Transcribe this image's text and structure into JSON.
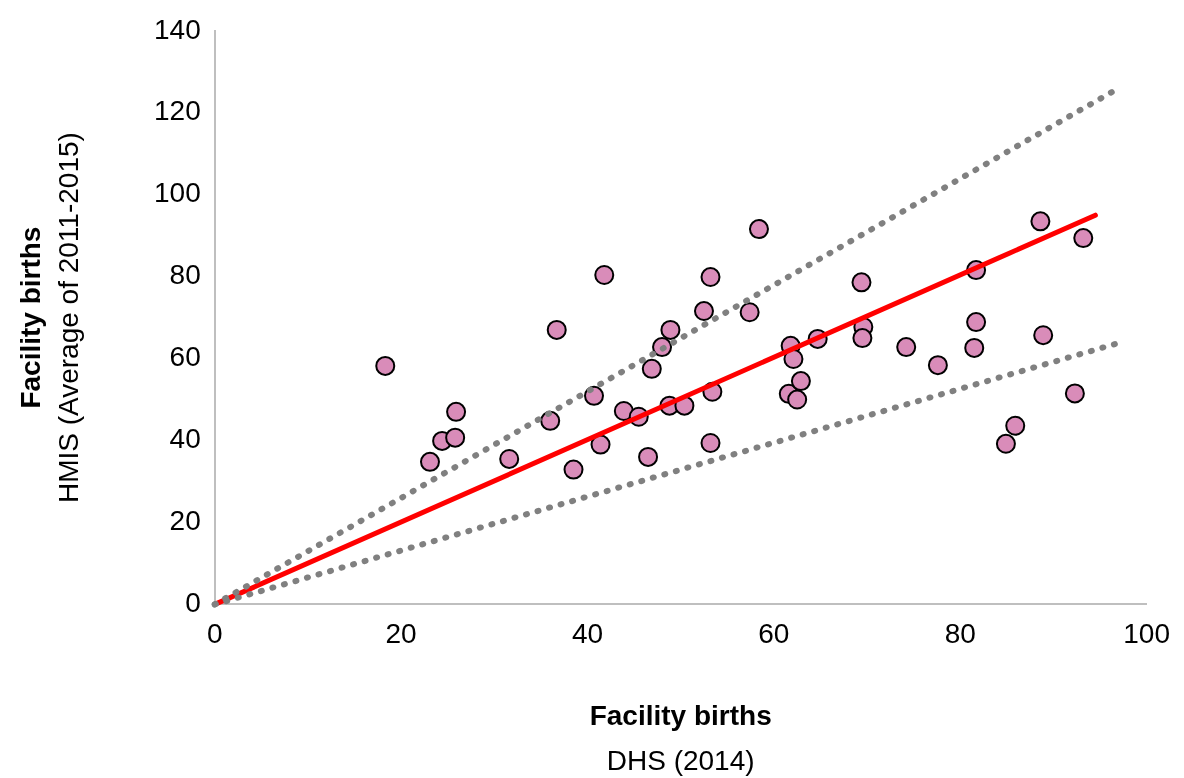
{
  "chart_data": {
    "type": "scatter",
    "xlabel": "Facility births\nDHS (2014)",
    "ylabel": "Facility births\nHMIS (Average of 2011-2015)",
    "xlim": [
      0,
      100
    ],
    "ylim": [
      0,
      140
    ],
    "xticks": [
      0,
      20,
      40,
      60,
      80,
      100
    ],
    "yticks": [
      0,
      20,
      40,
      60,
      80,
      100,
      120,
      140
    ],
    "grid": false,
    "legend": false,
    "series": [
      {
        "type": "scatter",
        "color": "#d98cb9",
        "marker": "circle",
        "x": [
          18.3,
          23.1,
          24.4,
          25.9,
          25.8,
          31.6,
          36.0,
          36.7,
          38.5,
          40.7,
          41.4,
          41.8,
          43.9,
          45.5,
          46.5,
          46.9,
          48.0,
          48.9,
          48.8,
          50.4,
          52.5,
          53.2,
          53.2,
          53.4,
          57.4,
          58.4,
          61.8,
          62.1,
          61.6,
          62.5,
          62.9,
          64.7,
          69.4,
          69.6,
          69.5,
          74.2,
          77.6,
          81.7,
          81.7,
          81.5,
          84.9,
          85.9,
          92.3,
          88.9,
          88.6,
          93.2
        ],
        "values": [
          58.2,
          34.8,
          39.9,
          47.0,
          40.7,
          35.5,
          44.8,
          67.0,
          32.9,
          50.9,
          39.0,
          80.4,
          47.2,
          45.8,
          36.0,
          57.5,
          62.8,
          67.0,
          48.5,
          48.5,
          71.6,
          79.9,
          39.4,
          51.9,
          71.3,
          91.6,
          63.1,
          59.9,
          51.4,
          50.0,
          54.5,
          64.8,
          78.6,
          67.7,
          65.0,
          62.8,
          58.4,
          81.6,
          68.9,
          62.6,
          39.2,
          43.6,
          51.5,
          65.7,
          93.5,
          89.4
        ]
      },
      {
        "type": "line",
        "color": "#ff0000",
        "line_style": "solid",
        "marker": "none",
        "x": [
          0,
          94.5
        ],
        "values": [
          0,
          95.0
        ]
      },
      {
        "type": "line",
        "color": "#808080",
        "line_style": "dotted",
        "marker": "none",
        "x": [
          0,
          97
        ],
        "values": [
          0,
          126
        ]
      },
      {
        "type": "line",
        "color": "#808080",
        "line_style": "dotted",
        "marker": "none",
        "x": [
          0,
          97
        ],
        "values": [
          0,
          63.8
        ]
      }
    ]
  }
}
